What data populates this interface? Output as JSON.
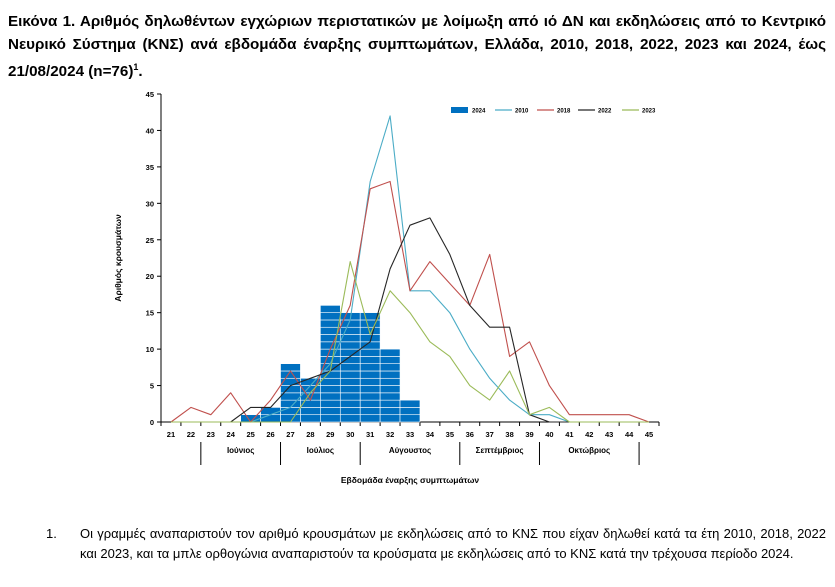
{
  "title": {
    "text": "Εικόνα 1. Αριθμός δηλωθέντων εγχώριων περιστατικών με λοίμωξη από ιό ΔΝ και εκδηλώσεις από το Κεντρικό Νευρικό Σύστημα (ΚΝΣ) ανά εβδομάδα έναρξης συμπτωμάτων, Ελλάδα, 2010, 2018, 2022, 2023 και 2024, έως 21/08/2024 (n=76)",
    "sup": "1",
    "end": "."
  },
  "chart_data": {
    "type": "bar+line",
    "ylabel": "Αριθμός κρουσμάτων",
    "xlabel": "Εβδομάδα έναρξης συμπτωμάτων",
    "ylim": [
      0,
      45
    ],
    "yticks": [
      0,
      5,
      10,
      15,
      20,
      25,
      30,
      35,
      40,
      45
    ],
    "weeks": [
      21,
      22,
      23,
      24,
      25,
      26,
      27,
      28,
      29,
      30,
      31,
      32,
      33,
      34,
      35,
      36,
      37,
      38,
      39,
      40,
      41,
      42,
      43,
      44,
      45
    ],
    "months": [
      {
        "label": "Ιούνιος",
        "from": 22.5,
        "to": 26.5
      },
      {
        "label": "Ιούλιος",
        "from": 26.5,
        "to": 30.5
      },
      {
        "label": "Αύγουστος",
        "from": 30.5,
        "to": 35.5
      },
      {
        "label": "Σεπτέμβριος",
        "from": 35.5,
        "to": 39.5
      },
      {
        "label": "Οκτώβριος",
        "from": 39.5,
        "to": 44.5
      }
    ],
    "bars": {
      "name": "2024",
      "color": "#0070C0",
      "values": [
        0,
        0,
        0,
        0,
        1,
        2,
        8,
        6,
        16,
        15,
        15,
        10,
        3,
        0,
        0,
        0,
        0,
        0,
        0,
        0,
        0,
        0,
        0,
        0,
        0
      ]
    },
    "series": [
      {
        "name": "2010",
        "color": "#4BACC6",
        "values": [
          0,
          0,
          0,
          0,
          0,
          1,
          2,
          5,
          8,
          14,
          33,
          42,
          18,
          18,
          15,
          10,
          6,
          3,
          1,
          1,
          0,
          0,
          0,
          0,
          0
        ]
      },
      {
        "name": "2018",
        "color": "#C0504D",
        "values": [
          0,
          2,
          1,
          4,
          0,
          3,
          7,
          3,
          10,
          16,
          32,
          33,
          18,
          22,
          19,
          16,
          23,
          9,
          11,
          5,
          1,
          1,
          1,
          1,
          0
        ]
      },
      {
        "name": "2022",
        "color": "#262626",
        "values": [
          0,
          0,
          0,
          0,
          2,
          2,
          5,
          6,
          7,
          9,
          11,
          21,
          27,
          28,
          23,
          16,
          13,
          13,
          1,
          0,
          0,
          0,
          0,
          0,
          0
        ]
      },
      {
        "name": "2023",
        "color": "#9BBB59",
        "values": [
          0,
          0,
          0,
          0,
          0,
          0,
          0,
          4,
          7,
          22,
          12,
          18,
          15,
          11,
          9,
          5,
          3,
          7,
          1,
          2,
          0,
          0,
          0,
          0,
          0
        ]
      }
    ]
  },
  "footnote": {
    "number": "1.",
    "text": "Οι γραμμές αναπαριστούν τον αριθμό κρουσμάτων με εκδηλώσεις από το ΚΝΣ που είχαν δηλωθεί κατά τα έτη 2010, 2018, 2022 και 2023, και τα μπλε ορθογώνια αναπαριστούν τα κρούσματα με εκδηλώσεις από το ΚΝΣ κατά την τρέχουσα περίοδο 2024."
  }
}
